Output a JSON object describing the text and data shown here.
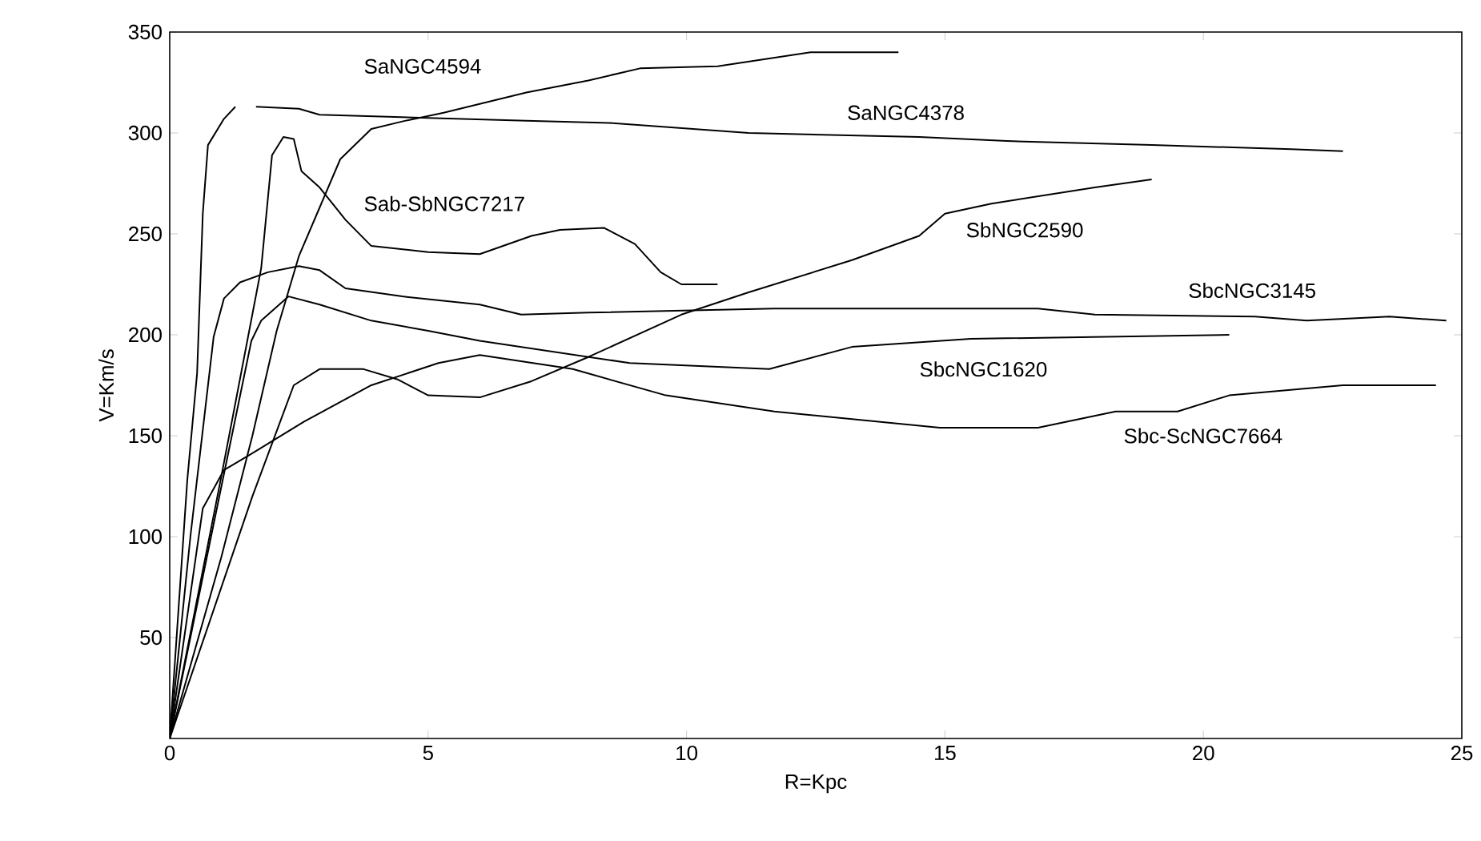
{
  "chart_data": {
    "type": "line",
    "xlabel": "R=Kpc",
    "ylabel": "V=Km/s",
    "xlim": [
      0,
      25
    ],
    "ylim": [
      0,
      350
    ],
    "xticks": [
      0,
      5,
      10,
      15,
      20,
      25
    ],
    "yticks": [
      50,
      100,
      150,
      200,
      250,
      300,
      350
    ],
    "grid": false,
    "legend": false,
    "series": [
      {
        "name": "SaNGC4594",
        "color": "#000000",
        "x": [
          0,
          1.0,
          1.6,
          2.07,
          2.5,
          2.9,
          3.3,
          3.9,
          4.55,
          5.3,
          6.9,
          8.1,
          9.1,
          10.6,
          12.4,
          14.1
        ],
        "values": [
          0,
          90,
          150,
          202,
          239,
          263,
          287,
          302,
          306,
          310,
          320,
          326,
          332,
          333,
          340,
          340
        ]
      },
      {
        "name": "SaNGC4378",
        "color": "#000000",
        "x": [
          0,
          0.34,
          0.53,
          0.64,
          0.74,
          1.05,
          1.27,
          1.5,
          1.67,
          2.5,
          2.9,
          6.9,
          8.5,
          11.2,
          14.5,
          16.2,
          19.0,
          21.7,
          22.7
        ],
        "values": [
          0,
          128,
          181,
          260,
          294,
          307,
          313,
          null,
          313,
          312,
          309,
          306,
          305,
          300,
          298,
          296,
          294,
          292,
          291
        ]
      },
      {
        "name": "Sab-SbNGC7217",
        "color": "#000000",
        "x": [
          0,
          1.0,
          1.77,
          1.98,
          2.2,
          2.4,
          2.55,
          2.9,
          3.4,
          3.9,
          5.0,
          6.0,
          7.0,
          7.55,
          8.4,
          9.0,
          9.5,
          9.9,
          10.6
        ],
        "values": [
          0,
          130,
          233,
          289,
          298,
          297,
          281,
          273,
          257,
          244,
          241,
          240,
          249,
          252,
          253,
          245,
          231,
          225,
          225
        ]
      },
      {
        "name": "SbNGC2590",
        "color": "#000000",
        "x": [
          0,
          1.6,
          2.4,
          2.9,
          3.75,
          4.4,
          5.0,
          6.0,
          7.0,
          8.1,
          9.9,
          11.2,
          13.2,
          14.5,
          15.0,
          15.9,
          17.9,
          19.0
        ],
        "values": [
          0,
          120,
          175,
          183,
          183,
          178,
          170,
          169,
          177,
          189,
          210,
          221,
          237,
          249,
          260,
          265,
          273,
          277
        ]
      },
      {
        "name": "SbcNGC3145",
        "color": "#000000",
        "x": [
          0,
          0.4,
          0.85,
          1.05,
          1.36,
          1.9,
          2.5,
          2.9,
          3.4,
          4.5,
          6.0,
          6.8,
          8.1,
          11.7,
          16.8,
          17.9,
          21.0,
          22.0,
          23.6,
          24.7
        ],
        "values": [
          0,
          100,
          199,
          218,
          226,
          231,
          234,
          232,
          223,
          219,
          215,
          210,
          211,
          213,
          213,
          210,
          209,
          207,
          209,
          207
        ]
      },
      {
        "name": "SbcNGC1620",
        "color": "#000000",
        "x": [
          0,
          0.8,
          1.58,
          1.77,
          2.3,
          2.9,
          3.9,
          5.0,
          6.0,
          8.9,
          11.6,
          13.2,
          15.5,
          20.5
        ],
        "values": [
          0,
          100,
          197,
          207,
          219,
          215,
          207,
          202,
          197,
          186,
          183,
          194,
          198,
          200
        ]
      },
      {
        "name": "Sbc-ScNGC7664",
        "color": "#000000",
        "x": [
          0,
          0.64,
          1.05,
          1.58,
          2.6,
          3.9,
          5.2,
          6.0,
          7.8,
          9.6,
          11.7,
          14.9,
          16.8,
          18.3,
          19.5,
          20.5,
          22.7,
          24.5
        ],
        "values": [
          0,
          114,
          133,
          141,
          157,
          175,
          186,
          190,
          183,
          170,
          162,
          154,
          154,
          162,
          162,
          170,
          175,
          175
        ]
      }
    ]
  }
}
